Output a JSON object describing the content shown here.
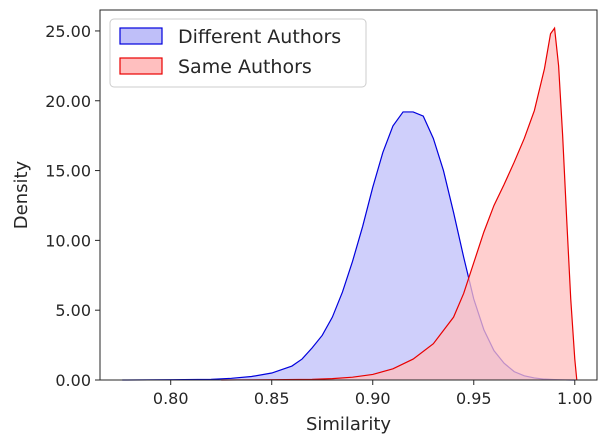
{
  "chart_data": {
    "type": "area",
    "xlabel": "Similarity",
    "ylabel": "Density",
    "xlim": [
      0.765,
      1.011
    ],
    "ylim": [
      0,
      26.5
    ],
    "xticks": [
      0.8,
      0.85,
      0.9,
      0.95,
      1.0
    ],
    "xtick_labels": [
      "0.80",
      "0.85",
      "0.90",
      "0.95",
      "1.00"
    ],
    "yticks": [
      0,
      5,
      10,
      15,
      20,
      25
    ],
    "ytick_labels": [
      "0.00",
      "5.00",
      "10.00",
      "15.00",
      "20.00",
      "25.00"
    ],
    "grid": false,
    "legend_position": "top-left",
    "series": [
      {
        "name": "Different Authors",
        "line_color": "#0000dd",
        "fill_color": "#bfbff9",
        "x": [
          0.776,
          0.8,
          0.82,
          0.83,
          0.84,
          0.85,
          0.86,
          0.865,
          0.87,
          0.875,
          0.88,
          0.885,
          0.89,
          0.895,
          0.9,
          0.905,
          0.91,
          0.915,
          0.92,
          0.925,
          0.93,
          0.935,
          0.94,
          0.945,
          0.95,
          0.955,
          0.96,
          0.965,
          0.97,
          0.975,
          0.98,
          0.985,
          0.99,
          0.995,
          1.0
        ],
        "y": [
          0.0,
          0.02,
          0.05,
          0.12,
          0.25,
          0.5,
          1.0,
          1.5,
          2.3,
          3.2,
          4.5,
          6.3,
          8.5,
          11.0,
          13.8,
          16.3,
          18.2,
          19.2,
          19.2,
          18.9,
          17.3,
          15.0,
          12.0,
          8.8,
          5.8,
          3.6,
          2.1,
          1.2,
          0.6,
          0.3,
          0.15,
          0.06,
          0.03,
          0.01,
          0.0
        ]
      },
      {
        "name": "Same Authors",
        "line_color": "#e80000",
        "fill_color": "#ffbfbf",
        "x": [
          0.825,
          0.85,
          0.87,
          0.88,
          0.89,
          0.9,
          0.91,
          0.92,
          0.93,
          0.94,
          0.945,
          0.95,
          0.955,
          0.96,
          0.965,
          0.97,
          0.975,
          0.98,
          0.985,
          0.988,
          0.99,
          0.992,
          0.994,
          0.996,
          0.998,
          1.0,
          1.001
        ],
        "y": [
          0.0,
          0.02,
          0.05,
          0.1,
          0.2,
          0.4,
          0.8,
          1.5,
          2.6,
          4.5,
          6.2,
          8.4,
          10.6,
          12.5,
          14.0,
          15.6,
          17.3,
          19.3,
          22.3,
          24.8,
          25.2,
          22.5,
          17.5,
          11.5,
          5.8,
          1.5,
          0.0
        ]
      }
    ]
  }
}
